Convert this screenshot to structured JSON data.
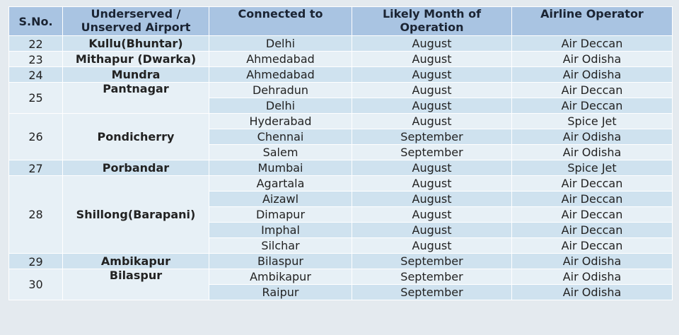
{
  "headers": [
    "S.No.",
    "Underserved / Unserved Airport",
    "Connected to",
    "Likely Month of Operation",
    "Airline Operator"
  ],
  "groups": [
    {
      "sno": "22",
      "airport": "Kullu(Bhuntar)",
      "rows": [
        {
          "to": "Delhi",
          "month": "August",
          "airline": "Air Deccan"
        }
      ]
    },
    {
      "sno": "23",
      "airport": "Mithapur (Dwarka)",
      "rows": [
        {
          "to": "Ahmedabad",
          "month": "August",
          "airline": "Air Odisha"
        }
      ]
    },
    {
      "sno": "24",
      "airport": "Mundra",
      "rows": [
        {
          "to": "Ahmedabad",
          "month": "August",
          "airline": "Air Odisha"
        }
      ]
    },
    {
      "sno": "25",
      "airport": "Pantnagar",
      "rows": [
        {
          "to": "Dehradun",
          "month": "August",
          "airline": "Air Deccan"
        },
        {
          "to": "Delhi",
          "month": "August",
          "airline": "Air Deccan"
        }
      ]
    },
    {
      "sno": "26",
      "airport": "Pondicherry",
      "rows": [
        {
          "to": "Hyderabad",
          "month": "August",
          "airline": "Spice Jet"
        },
        {
          "to": "Chennai",
          "month": "September",
          "airline": "Air Odisha"
        },
        {
          "to": "Salem",
          "month": "September",
          "airline": "Air Odisha"
        }
      ]
    },
    {
      "sno": "27",
      "airport": "Porbandar",
      "rows": [
        {
          "to": "Mumbai",
          "month": "August",
          "airline": "Spice Jet"
        }
      ]
    },
    {
      "sno": "28",
      "airport": "Shillong(Barapani)",
      "rows": [
        {
          "to": "Agartala",
          "month": "August",
          "airline": "Air Deccan"
        },
        {
          "to": "Aizawl",
          "month": "August",
          "airline": "Air Deccan"
        },
        {
          "to": "Dimapur",
          "month": "August",
          "airline": "Air Deccan"
        },
        {
          "to": "Imphal",
          "month": "August",
          "airline": "Air Deccan"
        },
        {
          "to": "Silchar",
          "month": "August",
          "airline": "Air Deccan"
        }
      ]
    },
    {
      "sno": "29",
      "airport": "Ambikapur",
      "rows": [
        {
          "to": "Bilaspur",
          "month": "September",
          "airline": "Air Odisha"
        }
      ]
    },
    {
      "sno": "30",
      "airport": "Bilaspur",
      "rows": [
        {
          "to": "Ambikapur",
          "month": "September",
          "airline": "Air Odisha"
        },
        {
          "to": "Raipur",
          "month": "September",
          "airline": "Air Odisha"
        }
      ]
    }
  ]
}
